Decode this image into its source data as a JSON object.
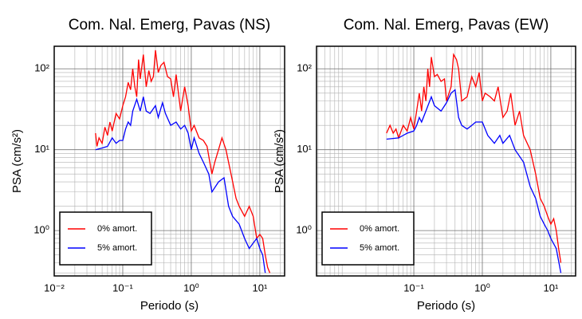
{
  "chart_data": [
    {
      "type": "line",
      "title": "Com. Nal. Emerg, Pavas (NS)",
      "x_label": "Periodo (s)",
      "y_label": "PSA (cm/s²)",
      "xscale": "log",
      "yscale": "log",
      "grid": true,
      "legend": "lower left",
      "xlim": [
        0.01,
        23
      ],
      "ylim": [
        0.275,
        190
      ],
      "xticks": [
        {
          "value": 0.01,
          "label": "10⁻²"
        },
        {
          "value": 0.1,
          "label": "10⁻¹"
        },
        {
          "value": 1,
          "label": "10⁰"
        },
        {
          "value": 10,
          "label": "10¹"
        }
      ],
      "yticks": [
        {
          "value": 1,
          "label": "10⁰"
        },
        {
          "value": 10,
          "label": "10¹"
        },
        {
          "value": 100,
          "label": "10²"
        }
      ],
      "series": [
        {
          "name": "0% amort.",
          "color": "#ff0000",
          "x": [
            0.04,
            0.042,
            0.045,
            0.05,
            0.055,
            0.06,
            0.065,
            0.07,
            0.08,
            0.09,
            0.1,
            0.11,
            0.12,
            0.13,
            0.14,
            0.15,
            0.16,
            0.17,
            0.18,
            0.2,
            0.22,
            0.24,
            0.26,
            0.28,
            0.3,
            0.33,
            0.36,
            0.4,
            0.45,
            0.5,
            0.55,
            0.6,
            0.7,
            0.8,
            0.9,
            1.0,
            1.1,
            1.3,
            1.5,
            1.7,
            2.0,
            2.2,
            2.5,
            2.8,
            3.2,
            3.8,
            4.5,
            5,
            6,
            7,
            8,
            9,
            10,
            11,
            12,
            13,
            14
          ],
          "values": [
            16,
            11,
            14,
            12,
            19,
            15,
            22,
            17,
            28,
            24,
            35,
            45,
            68,
            55,
            100,
            60,
            45,
            130,
            75,
            150,
            60,
            95,
            70,
            80,
            170,
            90,
            110,
            120,
            80,
            75,
            45,
            85,
            30,
            60,
            35,
            17,
            20,
            14,
            13,
            11,
            5,
            7,
            10,
            14,
            10,
            5,
            2.5,
            2,
            1.5,
            2,
            1.5,
            0.8,
            0.9,
            0.8,
            0.5,
            0.35,
            0.3
          ]
        },
        {
          "name": "5% amort.",
          "color": "#0000ff",
          "x": [
            0.04,
            0.05,
            0.06,
            0.07,
            0.08,
            0.09,
            0.1,
            0.11,
            0.12,
            0.13,
            0.14,
            0.16,
            0.18,
            0.2,
            0.22,
            0.25,
            0.3,
            0.33,
            0.38,
            0.42,
            0.5,
            0.6,
            0.7,
            0.8,
            0.9,
            1.0,
            1.1,
            1.3,
            1.5,
            1.8,
            2.0,
            2.5,
            3,
            3.5,
            4,
            5,
            6,
            7,
            8,
            9,
            10,
            11,
            12
          ],
          "values": [
            10,
            10.5,
            11,
            14,
            12,
            13,
            13,
            18,
            22,
            20,
            30,
            42,
            30,
            45,
            30,
            28,
            35,
            25,
            38,
            28,
            20,
            22,
            18,
            20,
            16,
            10,
            14,
            9,
            7,
            5,
            3,
            4,
            4.5,
            2,
            1.5,
            1.2,
            0.8,
            0.6,
            0.7,
            0.8,
            0.6,
            0.5,
            0.3
          ]
        }
      ]
    },
    {
      "type": "line",
      "title": "Com. Nal. Emerg, Pavas (EW)",
      "x_label": "Periodo (s)",
      "y_label": "PSA (cm/s²)",
      "xscale": "log",
      "yscale": "log",
      "grid": true,
      "legend": "lower left",
      "xlim": [
        0.0038,
        23
      ],
      "ylim": [
        0.275,
        190
      ],
      "xticks": [
        {
          "value": 0.1,
          "label": "10⁻¹"
        },
        {
          "value": 1,
          "label": "10⁰"
        },
        {
          "value": 10,
          "label": "10¹"
        }
      ],
      "yticks": [
        {
          "value": 1,
          "label": "10⁰"
        },
        {
          "value": 10,
          "label": "10¹"
        },
        {
          "value": 100,
          "label": "10²"
        }
      ],
      "series": [
        {
          "name": "0% amort.",
          "color": "#ff0000",
          "x": [
            0.04,
            0.045,
            0.05,
            0.055,
            0.06,
            0.07,
            0.08,
            0.09,
            0.1,
            0.11,
            0.12,
            0.13,
            0.14,
            0.15,
            0.16,
            0.17,
            0.18,
            0.2,
            0.22,
            0.25,
            0.28,
            0.3,
            0.35,
            0.38,
            0.42,
            0.45,
            0.5,
            0.6,
            0.7,
            0.8,
            0.9,
            1.0,
            1.1,
            1.3,
            1.5,
            1.7,
            2.0,
            2.3,
            2.6,
            3,
            3.5,
            4,
            5,
            6,
            7,
            8,
            9,
            10,
            11,
            12,
            13,
            14
          ],
          "values": [
            16,
            20,
            16,
            18,
            14,
            20,
            17,
            25,
            18,
            30,
            50,
            30,
            60,
            40,
            100,
            60,
            140,
            80,
            85,
            70,
            75,
            40,
            60,
            150,
            130,
            100,
            40,
            45,
            80,
            60,
            90,
            40,
            50,
            45,
            40,
            60,
            25,
            30,
            50,
            20,
            30,
            15,
            10,
            5,
            2.5,
            2,
            1.5,
            1.2,
            1.4,
            1,
            0.6,
            0.4
          ]
        },
        {
          "name": "5% amort.",
          "color": "#0000ff",
          "x": [
            0.04,
            0.06,
            0.08,
            0.1,
            0.11,
            0.12,
            0.13,
            0.15,
            0.18,
            0.2,
            0.25,
            0.3,
            0.35,
            0.4,
            0.45,
            0.5,
            0.6,
            0.7,
            0.8,
            1.0,
            1.2,
            1.5,
            1.8,
            2.0,
            2.5,
            3,
            4,
            5,
            6,
            7,
            8,
            9,
            10,
            12,
            14
          ],
          "values": [
            13.5,
            14,
            16,
            17,
            20,
            25,
            22,
            30,
            45,
            35,
            30,
            38,
            50,
            55,
            25,
            20,
            18,
            20,
            22,
            22,
            15,
            12,
            15,
            12,
            15,
            10,
            7,
            3.5,
            2.5,
            1.5,
            1.2,
            1,
            0.8,
            0.6,
            0.3
          ]
        }
      ]
    }
  ]
}
